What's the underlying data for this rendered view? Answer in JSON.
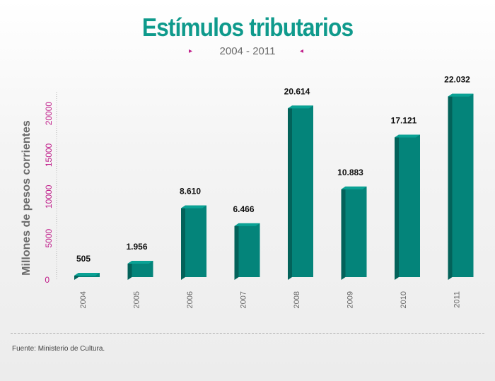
{
  "header": {
    "title": "Estímulos tributarios",
    "subtitle": "2004 - 2011",
    "left_marker": "▸",
    "right_marker": "◂"
  },
  "footer": {
    "source": "Fuente: Ministerio de Cultura."
  },
  "colors": {
    "title": "#0f9a8c",
    "bar_front": "#04847a",
    "bar_side": "#03625a",
    "bar_top": "#0aa295",
    "y_tick": "#c01d8a",
    "axis_label": "#6b6b6b",
    "markers": "#c01d8a"
  },
  "chart_data": {
    "type": "bar",
    "style": "3d",
    "title": "Estímulos tributarios",
    "subtitle": "2004 - 2011",
    "xlabel": "",
    "ylabel": "Millones de pesos corrientes",
    "categories": [
      "2004",
      "2005",
      "2006",
      "2007",
      "2008",
      "2009",
      "2010",
      "2011"
    ],
    "values": [
      505,
      1956,
      8610,
      6466,
      20614,
      10883,
      17121,
      22032
    ],
    "data_labels": [
      "505",
      "1.956",
      "8.610",
      "6.466",
      "20.614",
      "10.883",
      "17.121",
      "22.032"
    ],
    "y_ticks": [
      0,
      5000,
      10000,
      15000,
      20000
    ],
    "y_tick_labels": [
      "0",
      "5000",
      "10000",
      "15000",
      "20000"
    ],
    "ylim": [
      0,
      22000
    ],
    "grid": false,
    "legend": "none"
  }
}
